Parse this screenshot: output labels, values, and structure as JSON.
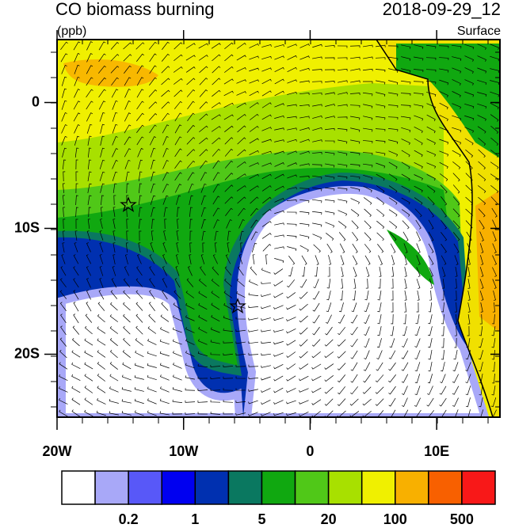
{
  "title": "CO biomass burning",
  "units": "(ppb)",
  "time": "2018-09-29_12",
  "level": "Surface",
  "map": {
    "xlim": [
      -20,
      15
    ],
    "ylim": [
      -25,
      5
    ],
    "xticks": [
      {
        "value": -20,
        "label": "20W"
      },
      {
        "value": -10,
        "label": "10W"
      },
      0,
      {
        "value": 10,
        "label": "10E"
      }
    ],
    "yticks": [
      0,
      {
        "value": -10,
        "label": "10S"
      },
      {
        "value": -20,
        "label": "20S"
      }
    ]
  },
  "colorbar": {
    "colors": [
      "#ffffff",
      "#a8a8f8",
      "#5858f8",
      "#0000f0",
      "#0030b0",
      "#0a7860",
      "#10a810",
      "#50c818",
      "#a8e000",
      "#f0f000",
      "#f8b000",
      "#f86000",
      "#f81818"
    ],
    "labels": [
      0.2,
      1,
      5,
      20,
      100,
      500
    ]
  }
}
